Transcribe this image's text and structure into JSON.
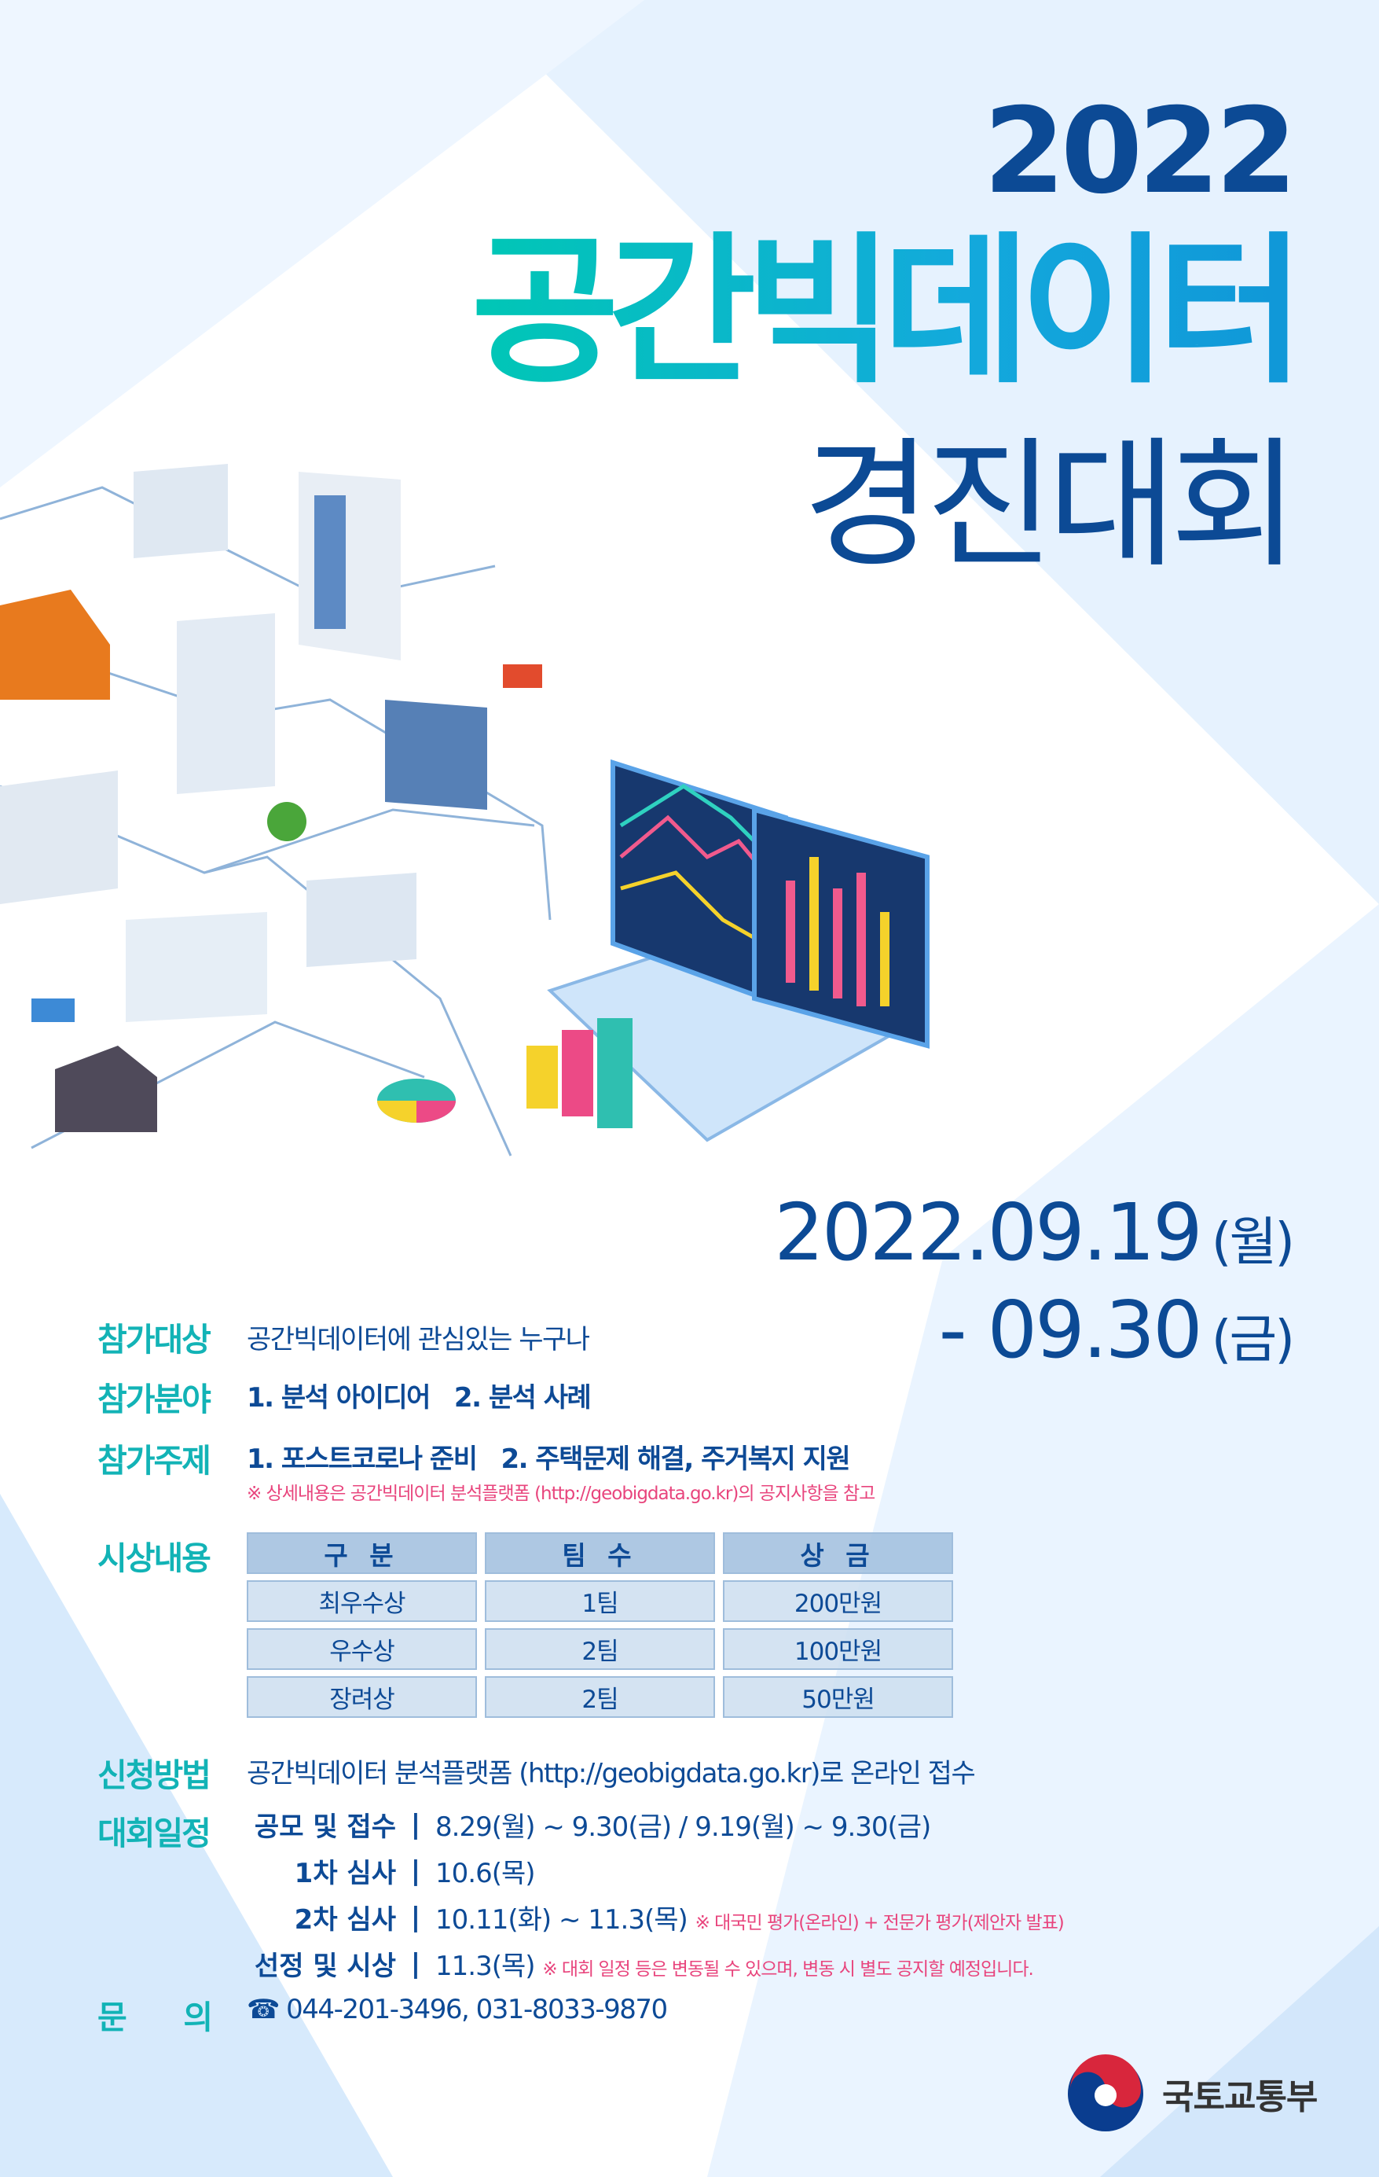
{
  "header": {
    "year": "2022",
    "title_main": "공간빅데이터",
    "title_sub": "경진대회"
  },
  "period": {
    "start": "2022.09.19",
    "start_day": "(월)",
    "end": "- 09.30",
    "end_day": "(금)"
  },
  "info": {
    "target": {
      "label": "참가대상",
      "value": "공간빅데이터에 관심있는 누구나"
    },
    "field": {
      "label": "참가분야",
      "value": "1. 분석 아이디어   2. 분석 사례"
    },
    "topic": {
      "label": "참가주제",
      "value": "1. 포스트코로나 준비   2. 주택문제 해결, 주거복지 지원",
      "note": "※ 상세내용은 공간빅데이터 분석플랫폼 (http://geobigdata.go.kr)의 공지사항을 참고"
    },
    "prize": {
      "label": "시상내용",
      "headers": [
        "구 분",
        "팀 수",
        "상 금"
      ],
      "rows": [
        [
          "최우수상",
          "1팀",
          "200만원"
        ],
        [
          "우수상",
          "2팀",
          "100만원"
        ],
        [
          "장려상",
          "2팀",
          "50만원"
        ]
      ]
    },
    "apply": {
      "label": "신청방법",
      "value": "공간빅데이터 분석플랫폼 (http://geobigdata.go.kr)로 온라인 접수"
    },
    "schedule": {
      "label": "대회일정",
      "rows": [
        {
          "key": "공모 및 접수",
          "value": "8.29(월) ~ 9.30(금)  / 9.19(월) ~ 9.30(금)",
          "note": ""
        },
        {
          "key": "1차 심사",
          "value": "10.6(목)",
          "note": ""
        },
        {
          "key": "2차 심사",
          "value": "10.11(화) ~ 11.3(목)",
          "note": "※ 대국민 평가(온라인) + 전문가 평가(제안자 발표)"
        },
        {
          "key": "선정 및 시상",
          "value": "11.3(목)",
          "note": "※ 대회 일정 등은 변동될 수 있으며, 변동 시 별도 공지할 예정입니다."
        }
      ]
    },
    "contact": {
      "label": "문      의",
      "icon": "phone-icon",
      "value": "044-201-3496, 031-8033-9870"
    }
  },
  "footer": {
    "logo_text": "국토교통부"
  },
  "colors": {
    "navy": "#0c4a95",
    "teal": "#12b3b6",
    "pink": "#e8457d",
    "light_blue": "#d3e7fb"
  }
}
